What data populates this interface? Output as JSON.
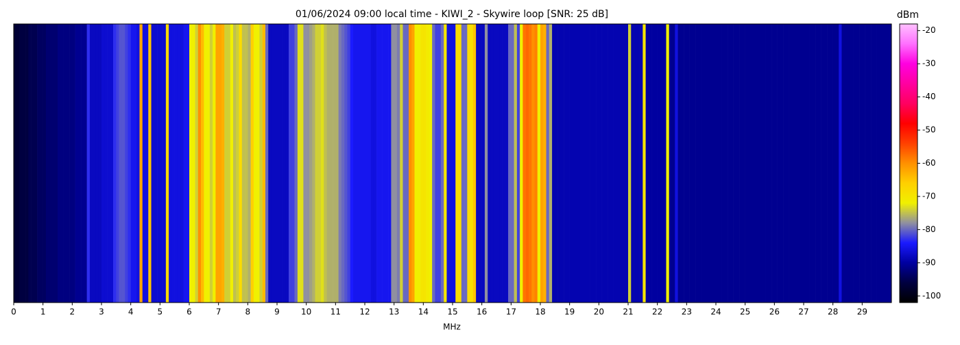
{
  "chart_data": {
    "type": "waterfall",
    "title": "01/06/2024 09:00 local time - KIWI_2 - Skywire loop [SNR: 25 dB]",
    "x_label": "MHz",
    "xlim": [
      0,
      30
    ],
    "xticks": [
      0,
      1,
      2,
      3,
      4,
      5,
      6,
      7,
      8,
      9,
      10,
      11,
      12,
      13,
      14,
      15,
      16,
      17,
      18,
      19,
      20,
      21,
      22,
      23,
      24,
      25,
      26,
      27,
      28,
      29
    ],
    "colorbar_label": "dBm",
    "clim": [
      -102,
      -18
    ],
    "cticks": [
      -100,
      -90,
      -80,
      -70,
      -60,
      -50,
      -40,
      -30,
      -20
    ],
    "colormap": [
      "#000000",
      "#000040",
      "#0000a0",
      "#1a1aff",
      "#9090a0",
      "#f0f000",
      "#ffd000",
      "#ff9000",
      "#ff4000",
      "#ff0000",
      "#ff0060",
      "#ff00a0",
      "#ff00e0",
      "#ff70ff",
      "#ffc0ff"
    ],
    "values": [
      -97,
      -97,
      -96,
      -96,
      -96,
      -95,
      -95,
      -95,
      -94,
      -94,
      -94,
      -93,
      -93,
      -93,
      -93,
      -92,
      -92,
      -92,
      -92,
      -92,
      -92,
      -91,
      -91,
      -91,
      -91,
      -83,
      -88,
      -88,
      -88,
      -88,
      -87,
      -87,
      -87,
      -87,
      -83,
      -82,
      -81,
      -81,
      -82,
      -83,
      -85,
      -85,
      -86,
      -62,
      -86,
      -86,
      -65,
      -87,
      -87,
      -87,
      -87,
      -87,
      -68,
      -86,
      -86,
      -86,
      -86,
      -86,
      -85,
      -85,
      -72,
      -72,
      -74,
      -60,
      -64,
      -72,
      -72,
      -74,
      -72,
      -62,
      -62,
      -63,
      -74,
      -74,
      -72,
      -75,
      -74,
      -68,
      -75,
      -75,
      -76,
      -66,
      -72,
      -72,
      -74,
      -64,
      -80,
      -88,
      -88,
      -88,
      -88,
      -88,
      -88,
      -88,
      -82,
      -82,
      -80,
      -73,
      -73,
      -78,
      -78,
      -77,
      -76,
      -74,
      -74,
      -73,
      -75,
      -76,
      -76,
      -76,
      -76,
      -79,
      -80,
      -81,
      -82,
      -84,
      -85,
      -85,
      -85,
      -85,
      -85,
      -85,
      -86,
      -86,
      -85,
      -85,
      -85,
      -85,
      -85,
      -78,
      -78,
      -79,
      -74,
      -80,
      -80,
      -60,
      -62,
      -72,
      -72,
      -70,
      -70,
      -71,
      -72,
      -80,
      -82,
      -82,
      -80,
      -70,
      -86,
      -86,
      -86,
      -68,
      -68,
      -80,
      -80,
      -68,
      -69,
      -65,
      -88,
      -88,
      -88,
      -78,
      -88,
      -88,
      -88,
      -88,
      -88,
      -88,
      -88,
      -80,
      -80,
      -75,
      -82,
      -72,
      -58,
      -57,
      -58,
      -60,
      -59,
      -72,
      -62,
      -63,
      -80,
      -76,
      -89,
      -89,
      -89,
      -89,
      -89,
      -89,
      -89,
      -89,
      -89,
      -89,
      -89,
      -89,
      -89,
      -89,
      -89,
      -89,
      -89,
      -89,
      -89,
      -89,
      -89,
      -89,
      -89,
      -89,
      -89,
      -89,
      -74,
      -89,
      -89,
      -89,
      -89,
      -70,
      -90,
      -90,
      -90,
      -90,
      -90,
      -90,
      -90,
      -72,
      -91,
      -91,
      -86,
      -91,
      -91,
      -91,
      -91,
      -91,
      -91,
      -91,
      -91,
      -91,
      -91,
      -91,
      -91,
      -91,
      -91,
      -91,
      -91,
      -91,
      -91,
      -91,
      -91,
      -91,
      -91,
      -91,
      -91,
      -91,
      -91,
      -91,
      -91,
      -91,
      -91,
      -91,
      -91,
      -91,
      -91,
      -91,
      -91,
      -91,
      -91,
      -91,
      -91,
      -91,
      -91,
      -91,
      -91,
      -91,
      -91,
      -91,
      -91,
      -91,
      -91,
      -91,
      -91,
      -91,
      -91,
      -91,
      -86,
      -91,
      -91,
      -91,
      -91,
      -91,
      -91,
      -91,
      -91,
      -91,
      -91,
      -91,
      -91,
      -91,
      -91,
      -91,
      -91,
      -91
    ]
  }
}
